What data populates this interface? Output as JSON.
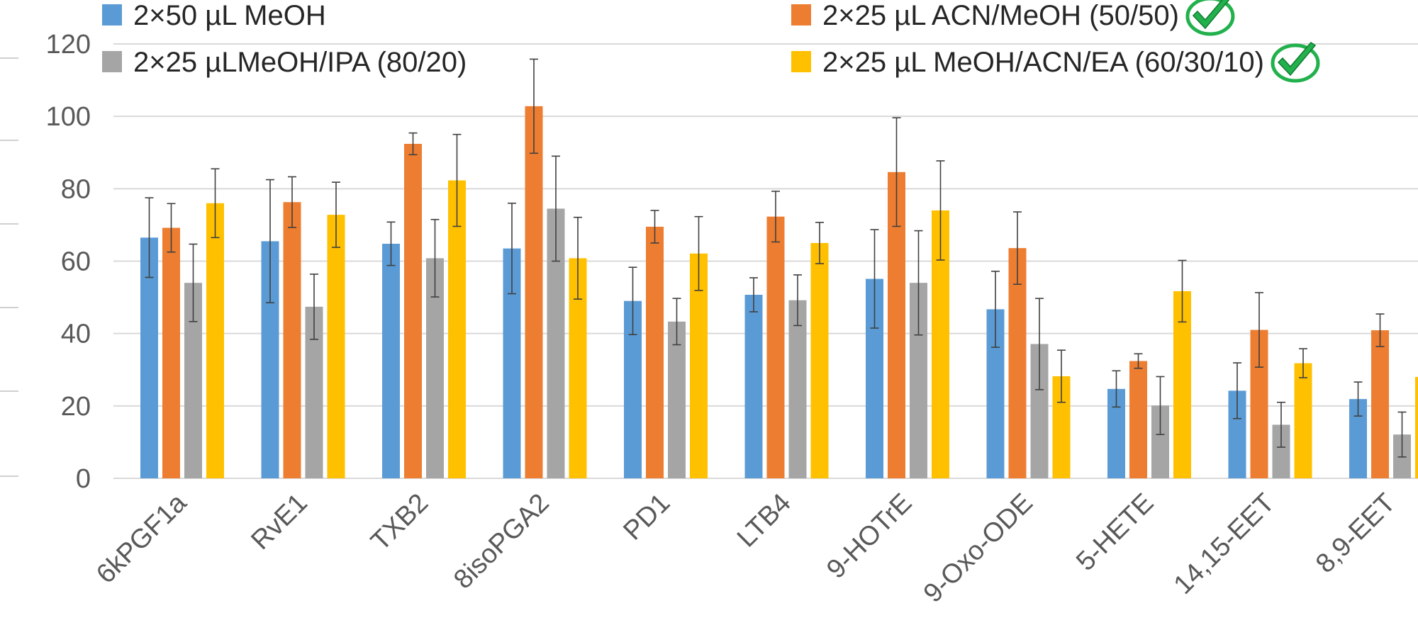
{
  "chart_data": {
    "type": "bar",
    "title": "",
    "xlabel": "",
    "ylabel": "",
    "ylim": [
      0,
      120
    ],
    "yticks": [
      0,
      20,
      40,
      60,
      80,
      100,
      120
    ],
    "grid": true,
    "legend_position": "top",
    "categories": [
      "6kPGF1a",
      "RvE1",
      "TXB2",
      "8isoPGA2",
      "PD1",
      "LTB4",
      "9-HOTrE",
      "9-Oxo-ODE",
      "5-HETE",
      "14,15-EET",
      "8,9-EET"
    ],
    "series": [
      {
        "name": "2×50 µL MeOH",
        "color": "#5B9BD5",
        "values": [
          66.5,
          65.5,
          64.8,
          63.5,
          49,
          50.7,
          55.1,
          46.7,
          24.7,
          24.2,
          21.9
        ],
        "errors": [
          11,
          17,
          6,
          12.5,
          9.3,
          4.7,
          13.6,
          10.5,
          5,
          7.7,
          4.7
        ],
        "checkmark": false
      },
      {
        "name": "2×25 µL ACN/MeOH (50/50)",
        "color": "#ED7D31",
        "values": [
          69.2,
          76.3,
          92.4,
          102.8,
          69.5,
          72.3,
          84.6,
          63.6,
          32.4,
          41,
          40.9
        ],
        "errors": [
          6.7,
          7,
          3,
          13,
          4.5,
          7,
          15,
          10,
          2,
          10.3,
          4.5
        ],
        "checkmark": true
      },
      {
        "name": "2×25 µLMeOH/IPA (80/20)",
        "color": "#A5A5A5",
        "values": [
          54,
          47.4,
          60.8,
          74.5,
          43.3,
          49.2,
          54,
          37.1,
          20.1,
          14.8,
          12.1
        ],
        "errors": [
          10.7,
          9,
          10.7,
          14.5,
          6.4,
          7,
          14.4,
          12.6,
          8,
          6.2,
          6.2
        ],
        "checkmark": false
      },
      {
        "name": "2×25 µL MeOH/ACN/EA (60/30/10)",
        "color": "#FFC000",
        "values": [
          76,
          72.8,
          82.3,
          60.8,
          62.1,
          65,
          74,
          28.2,
          51.7,
          31.8,
          28
        ],
        "errors": [
          9.5,
          9,
          12.7,
          11.3,
          10.2,
          5.7,
          13.7,
          7.2,
          8.5,
          4,
          0
        ],
        "checkmark": true
      }
    ]
  }
}
